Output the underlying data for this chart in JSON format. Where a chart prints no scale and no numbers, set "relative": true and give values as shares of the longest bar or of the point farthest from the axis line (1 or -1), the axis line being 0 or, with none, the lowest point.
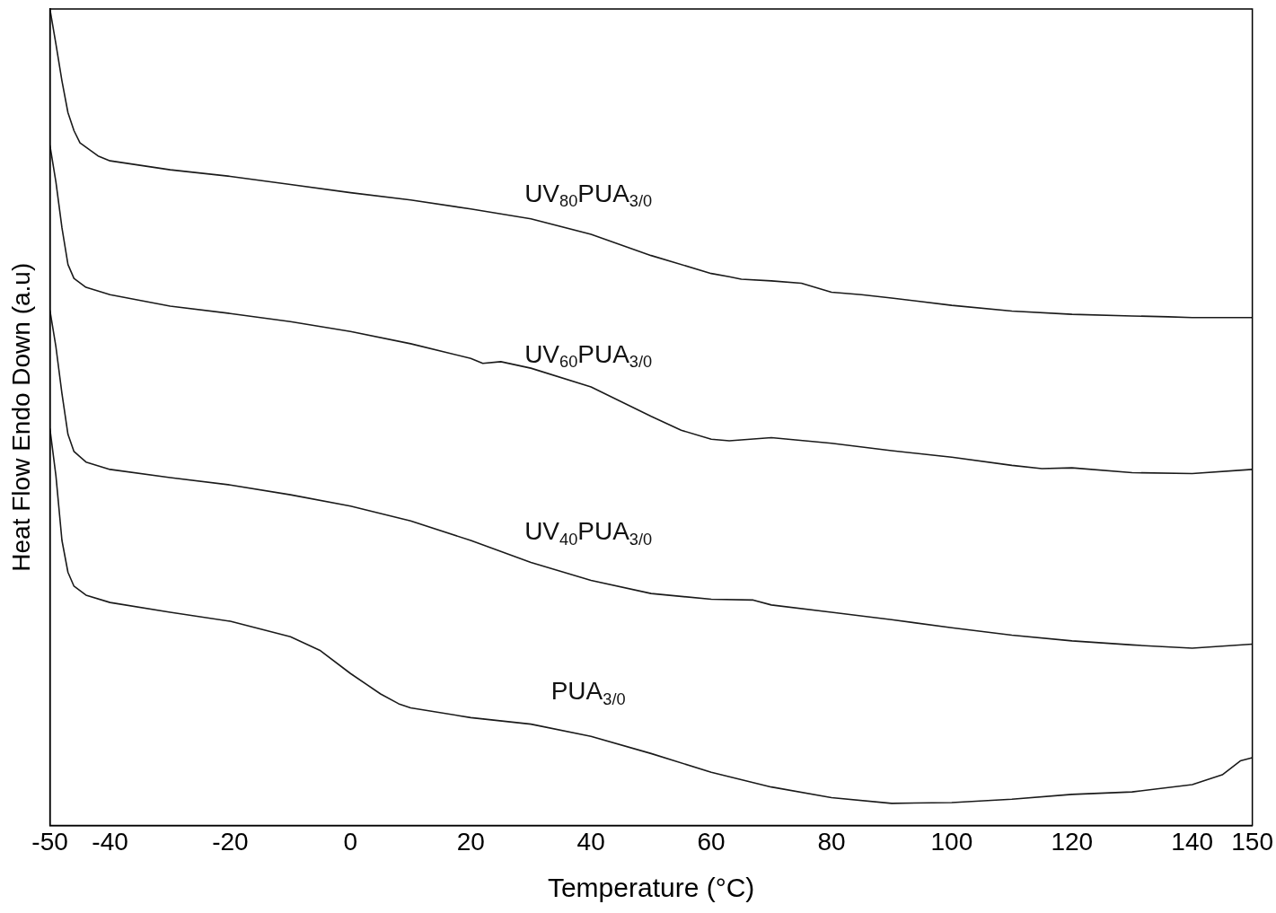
{
  "chart_data": {
    "type": "line",
    "relative": true,
    "xlabel": "Temperature (°C)",
    "ylabel": "Heat Flow Endo Down (a.u)",
    "xlim": [
      -50,
      150
    ],
    "xticks": [
      -50,
      -40,
      -20,
      0,
      20,
      40,
      60,
      80,
      100,
      120,
      140,
      150
    ],
    "grid": false,
    "legend": false,
    "marker": "none",
    "line_style": "solid",
    "series": [
      {
        "name": "UV$_{80}$PUA$_{3/0}$",
        "color": "#1a1a1a",
        "x": [
          -50,
          -49,
          -48,
          -47,
          -46,
          -45,
          -42,
          -40,
          -30,
          -20,
          -10,
          0,
          10,
          20,
          30,
          40,
          50,
          60,
          63,
          65,
          70,
          75,
          80,
          85,
          90,
          100,
          110,
          120,
          130,
          136,
          140,
          150
        ],
        "values": [
          1.0,
          0.957,
          0.912,
          0.873,
          0.851,
          0.836,
          0.82,
          0.814,
          0.803,
          0.795,
          0.785,
          0.775,
          0.766,
          0.755,
          0.743,
          0.724,
          0.698,
          0.676,
          0.672,
          0.669,
          0.667,
          0.664,
          0.653,
          0.65,
          0.646,
          0.637,
          0.63,
          0.626,
          0.624,
          0.623,
          0.622,
          0.622
        ]
      },
      {
        "name": "UV$_{60}$PUA$_{3/0}$",
        "color": "#1a1a1a",
        "x": [
          -50,
          -49,
          -48,
          -47,
          -46,
          -44,
          -40,
          -30,
          -20,
          -10,
          0,
          10,
          20,
          22,
          25,
          30,
          40,
          50,
          55,
          60,
          63,
          70,
          80,
          90,
          100,
          110,
          115,
          120,
          130,
          140,
          150
        ],
        "values": [
          0.833,
          0.788,
          0.732,
          0.687,
          0.67,
          0.659,
          0.65,
          0.636,
          0.627,
          0.617,
          0.605,
          0.59,
          0.572,
          0.566,
          0.568,
          0.56,
          0.537,
          0.501,
          0.484,
          0.473,
          0.471,
          0.475,
          0.468,
          0.459,
          0.451,
          0.441,
          0.437,
          0.438,
          0.432,
          0.431,
          0.436
        ]
      },
      {
        "name": "UV$_{40}$PUA$_{3/0}$",
        "color": "#1a1a1a",
        "x": [
          -50,
          -49,
          -48,
          -47,
          -46,
          -44,
          -40,
          -30,
          -20,
          -10,
          0,
          10,
          20,
          30,
          40,
          50,
          60,
          67,
          70,
          80,
          90,
          100,
          110,
          120,
          130,
          140,
          150
        ],
        "values": [
          0.631,
          0.586,
          0.529,
          0.479,
          0.458,
          0.445,
          0.436,
          0.426,
          0.417,
          0.405,
          0.391,
          0.373,
          0.349,
          0.322,
          0.3,
          0.284,
          0.277,
          0.276,
          0.27,
          0.261,
          0.252,
          0.242,
          0.233,
          0.226,
          0.221,
          0.217,
          0.222
        ]
      },
      {
        "name": "PUA$_{3/0}$",
        "color": "#1a1a1a",
        "x": [
          -50,
          -49,
          -48,
          -47,
          -46,
          -44,
          -40,
          -30,
          -20,
          -10,
          -5,
          0,
          5,
          8,
          10,
          20,
          30,
          40,
          50,
          60,
          70,
          80,
          90,
          100,
          110,
          120,
          130,
          140,
          145,
          148,
          150
        ],
        "values": [
          0.486,
          0.428,
          0.349,
          0.31,
          0.293,
          0.282,
          0.273,
          0.261,
          0.25,
          0.231,
          0.214,
          0.186,
          0.161,
          0.149,
          0.144,
          0.132,
          0.124,
          0.109,
          0.088,
          0.065,
          0.047,
          0.034,
          0.027,
          0.028,
          0.032,
          0.038,
          0.041,
          0.05,
          0.062,
          0.079,
          0.083
        ]
      }
    ]
  }
}
